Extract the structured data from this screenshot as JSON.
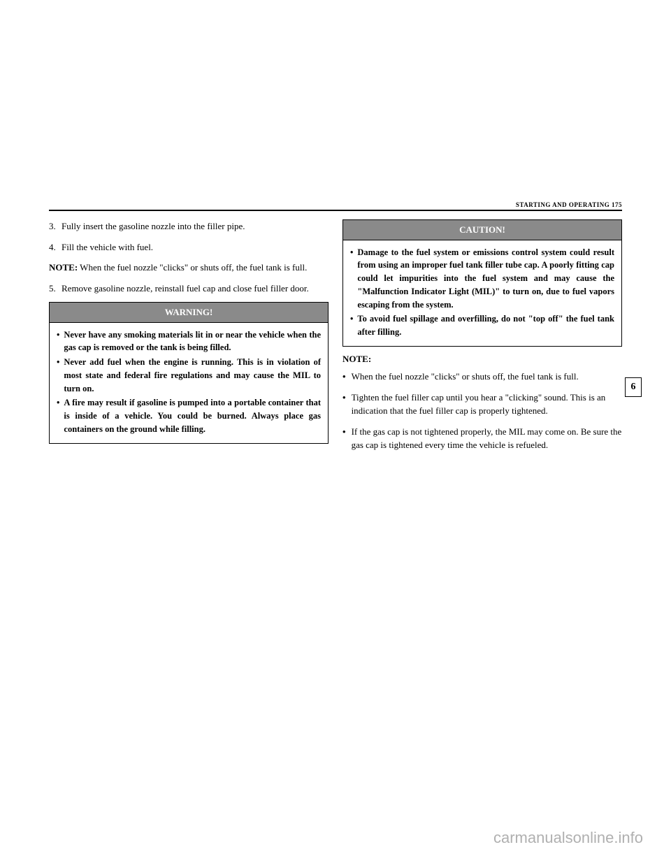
{
  "header": {
    "section_title": "STARTING AND OPERATING",
    "page_number": "175"
  },
  "side_tab": "6",
  "left_column": {
    "steps": [
      {
        "num": "3.",
        "text": "Fully insert the gasoline nozzle into the filler pipe."
      },
      {
        "num": "4.",
        "text": "Fill the vehicle with fuel."
      }
    ],
    "note_inline": {
      "label": "NOTE:",
      "text": " When the fuel nozzle \"clicks\" or shuts off, the fuel tank is full."
    },
    "steps_after": [
      {
        "num": "5.",
        "text": "Remove gasoline nozzle, reinstall fuel cap and close fuel filler door."
      }
    ],
    "warning": {
      "title": "WARNING!",
      "items": [
        "Never have any smoking materials lit in or near the vehicle when the gas cap is removed or the tank is being filled.",
        "Never add fuel when the engine is running. This is in violation of most state and federal fire regulations and may cause the MIL to turn on.",
        "A fire may result if gasoline is pumped into a portable container that is inside of a vehicle. You could be burned. Always place gas containers on the ground while filling."
      ]
    }
  },
  "right_column": {
    "caution": {
      "title": "CAUTION!",
      "items": [
        "Damage to the fuel system or emissions control system could result from using an improper fuel tank filler tube cap. A poorly fitting cap could let impurities into the fuel system and may cause the \"Malfunction Indicator Light (MIL)\" to turn on, due to fuel vapors escaping from the system.",
        "To avoid fuel spillage and overfilling, do not \"top off\" the fuel tank after filling."
      ]
    },
    "note_heading": "NOTE:",
    "notes": [
      "When the fuel nozzle \"clicks\" or shuts off, the fuel tank is full.",
      "Tighten the fuel filler cap until you hear a \"clicking\" sound. This is an indication that the fuel filler cap is properly tightened.",
      "If the gas cap is not tightened properly, the MIL may come on. Be sure the gas cap is tightened every time the vehicle is refueled."
    ]
  },
  "watermark": "carmanualsonline.info"
}
